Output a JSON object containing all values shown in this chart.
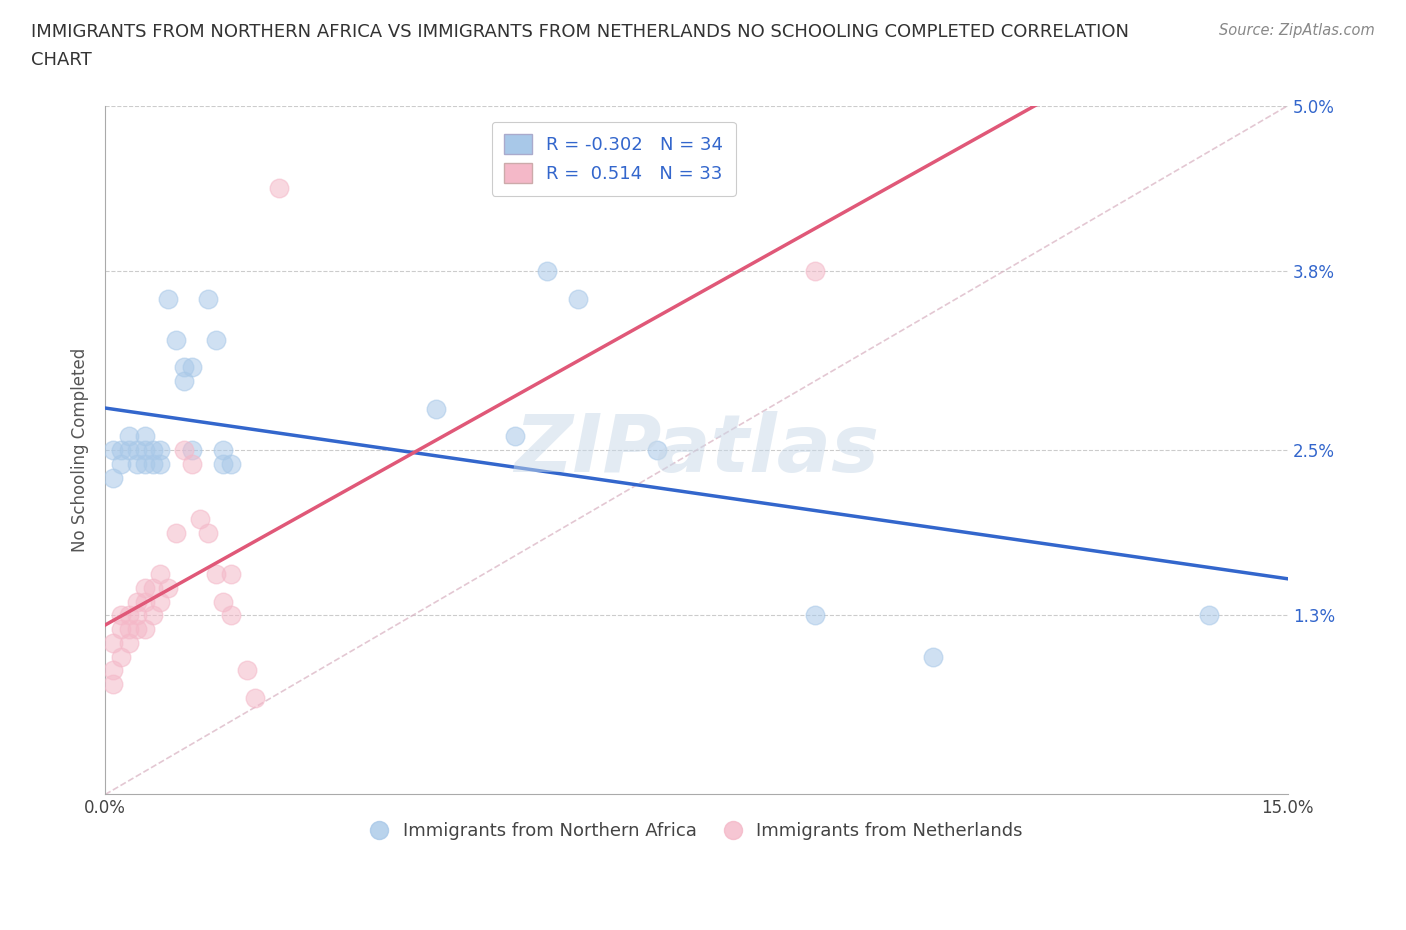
{
  "title_line1": "IMMIGRANTS FROM NORTHERN AFRICA VS IMMIGRANTS FROM NETHERLANDS NO SCHOOLING COMPLETED CORRELATION",
  "title_line2": "CHART",
  "source": "Source: ZipAtlas.com",
  "ylabel": "No Schooling Completed",
  "x_min": 0.0,
  "x_max": 0.15,
  "y_min": 0.0,
  "y_max": 0.05,
  "blue_R": -0.302,
  "blue_N": 34,
  "pink_R": 0.514,
  "pink_N": 33,
  "blue_color": "#a8c8e8",
  "blue_line_color": "#3366cc",
  "pink_color": "#f4b8c8",
  "pink_line_color": "#e05878",
  "dash_color": "#d0a0b0",
  "watermark": "ZIPatlas",
  "legend_label_blue": "Immigrants from Northern Africa",
  "legend_label_pink": "Immigrants from Netherlands",
  "blue_scatter": [
    [
      0.001,
      0.025
    ],
    [
      0.001,
      0.023
    ],
    [
      0.002,
      0.024
    ],
    [
      0.002,
      0.025
    ],
    [
      0.003,
      0.026
    ],
    [
      0.003,
      0.025
    ],
    [
      0.004,
      0.025
    ],
    [
      0.004,
      0.024
    ],
    [
      0.005,
      0.026
    ],
    [
      0.005,
      0.025
    ],
    [
      0.005,
      0.024
    ],
    [
      0.006,
      0.025
    ],
    [
      0.006,
      0.024
    ],
    [
      0.007,
      0.025
    ],
    [
      0.007,
      0.024
    ],
    [
      0.008,
      0.036
    ],
    [
      0.009,
      0.033
    ],
    [
      0.01,
      0.031
    ],
    [
      0.01,
      0.03
    ],
    [
      0.011,
      0.031
    ],
    [
      0.011,
      0.025
    ],
    [
      0.013,
      0.036
    ],
    [
      0.014,
      0.033
    ],
    [
      0.015,
      0.025
    ],
    [
      0.015,
      0.024
    ],
    [
      0.016,
      0.024
    ],
    [
      0.042,
      0.028
    ],
    [
      0.052,
      0.026
    ],
    [
      0.056,
      0.038
    ],
    [
      0.06,
      0.036
    ],
    [
      0.07,
      0.025
    ],
    [
      0.09,
      0.013
    ],
    [
      0.105,
      0.01
    ],
    [
      0.14,
      0.013
    ]
  ],
  "pink_scatter": [
    [
      0.001,
      0.011
    ],
    [
      0.001,
      0.009
    ],
    [
      0.001,
      0.008
    ],
    [
      0.002,
      0.013
    ],
    [
      0.002,
      0.012
    ],
    [
      0.002,
      0.01
    ],
    [
      0.003,
      0.013
    ],
    [
      0.003,
      0.012
    ],
    [
      0.003,
      0.011
    ],
    [
      0.004,
      0.014
    ],
    [
      0.004,
      0.013
    ],
    [
      0.004,
      0.012
    ],
    [
      0.005,
      0.015
    ],
    [
      0.005,
      0.014
    ],
    [
      0.005,
      0.012
    ],
    [
      0.006,
      0.015
    ],
    [
      0.006,
      0.013
    ],
    [
      0.007,
      0.016
    ],
    [
      0.007,
      0.014
    ],
    [
      0.008,
      0.015
    ],
    [
      0.009,
      0.019
    ],
    [
      0.01,
      0.025
    ],
    [
      0.011,
      0.024
    ],
    [
      0.012,
      0.02
    ],
    [
      0.013,
      0.019
    ],
    [
      0.014,
      0.016
    ],
    [
      0.015,
      0.014
    ],
    [
      0.016,
      0.016
    ],
    [
      0.016,
      0.013
    ],
    [
      0.018,
      0.009
    ],
    [
      0.019,
      0.007
    ],
    [
      0.022,
      0.044
    ],
    [
      0.09,
      0.038
    ]
  ],
  "y_ticks": [
    0.0,
    0.013,
    0.025,
    0.038,
    0.05
  ],
  "y_tick_labels": [
    "",
    "1.3%",
    "2.5%",
    "3.8%",
    "5.0%"
  ],
  "x_ticks": [
    0.0,
    0.03,
    0.06,
    0.09,
    0.12,
    0.15
  ],
  "x_tick_labels": [
    "0.0%",
    "",
    "",
    "",
    "",
    "15.0%"
  ]
}
